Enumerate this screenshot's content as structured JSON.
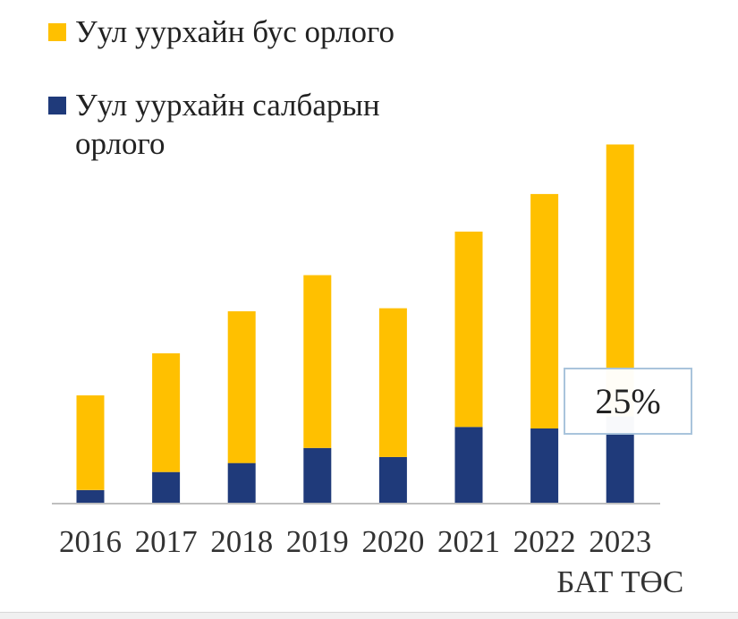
{
  "colors": {
    "non_mining": "#ffc000",
    "mining": "#1f3a7a",
    "axis": "#bfbfbf",
    "callout_border": "#a9c4dc"
  },
  "chart_data": {
    "type": "bar",
    "stacked": true,
    "categories": [
      [
        "2016"
      ],
      [
        "2017"
      ],
      [
        "2018"
      ],
      [
        "2019"
      ],
      [
        "2020"
      ],
      [
        "2021"
      ],
      [
        "2022"
      ],
      [
        "2023",
        "БАТ ТӨС"
      ]
    ],
    "series": [
      {
        "name": "Уул уурхайн салбарын орлого",
        "color_key": "mining",
        "values": [
          0.9,
          2.1,
          2.7,
          3.7,
          3.1,
          5.1,
          5.0,
          5.8
        ]
      },
      {
        "name": "Уул уурхайн бус орлого",
        "color_key": "non_mining",
        "values": [
          6.3,
          7.9,
          10.1,
          11.5,
          9.9,
          13.0,
          15.6,
          18.1
        ]
      }
    ],
    "legend_order": [
      1,
      0
    ],
    "legend_position": "top-left",
    "ylim": [
      0,
      25
    ],
    "y_axis_visible": false,
    "grid": false,
    "annotation": {
      "text": "25%",
      "category_index": 7
    }
  }
}
